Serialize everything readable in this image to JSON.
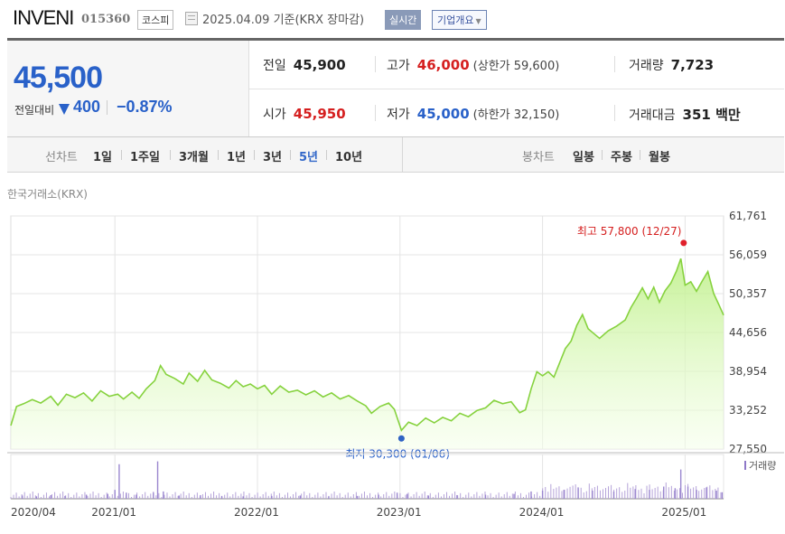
{
  "header": {
    "name": "INVENI",
    "code": "015360",
    "market": "코스피",
    "date_text": "2025.04.09  기준(KRX 장마감)",
    "live": "실시간",
    "company_info": "기업개요"
  },
  "quote": {
    "price": "45,500",
    "change_label": "전일대비",
    "change": "400",
    "change_pct": "−0.87%",
    "prev_label": "전일",
    "prev": "45,900",
    "high_label": "고가",
    "high": "46,000",
    "upper_limit": "(상한가 59,600)",
    "volume_label": "거래량",
    "volume": "7,723",
    "open_label": "시가",
    "open": "45,950",
    "low_label": "저가",
    "low": "45,000",
    "lower_limit": "(하한가 32,150)",
    "amount_label": "거래대금",
    "amount": "351 백만",
    "down_color": "#2961c9",
    "up_color": "#d51f1f"
  },
  "toolbar": {
    "line_label": "선차트",
    "periods": [
      "1일",
      "1주일",
      "3개월",
      "1년",
      "3년",
      "5년",
      "10년"
    ],
    "active_period": "5년",
    "candle_label": "봉차트",
    "candles": [
      "일봉",
      "주봉",
      "월봉"
    ]
  },
  "chart_data": {
    "type": "area",
    "source_label": "한국거래소(KRX)",
    "y_ticks": [
      "61,761",
      "56,059",
      "50,357",
      "44,656",
      "38,954",
      "33,252",
      "27,550"
    ],
    "y_range": [
      27550,
      61761
    ],
    "x_labels": [
      "2020/04",
      "2021/01",
      "2022/01",
      "2023/01",
      "2024/01",
      "2025/01"
    ],
    "max_label": "최고 57,800 (12/27)",
    "min_label": "최저 30,300 (01/06)",
    "volume_label": "거래량",
    "price_series": [
      [
        2020.27,
        31000
      ],
      [
        2020.31,
        33800
      ],
      [
        2020.36,
        34200
      ],
      [
        2020.42,
        34800
      ],
      [
        2020.48,
        34300
      ],
      [
        2020.55,
        35300
      ],
      [
        2020.6,
        34000
      ],
      [
        2020.66,
        35600
      ],
      [
        2020.72,
        35100
      ],
      [
        2020.78,
        35800
      ],
      [
        2020.84,
        34600
      ],
      [
        2020.9,
        36100
      ],
      [
        2020.96,
        35300
      ],
      [
        2021.02,
        35600
      ],
      [
        2021.06,
        34900
      ],
      [
        2021.12,
        35900
      ],
      [
        2021.17,
        35000
      ],
      [
        2021.22,
        36400
      ],
      [
        2021.28,
        37600
      ],
      [
        2021.32,
        39800
      ],
      [
        2021.36,
        38500
      ],
      [
        2021.42,
        37900
      ],
      [
        2021.48,
        37100
      ],
      [
        2021.52,
        38700
      ],
      [
        2021.58,
        37500
      ],
      [
        2021.63,
        39100
      ],
      [
        2021.68,
        37700
      ],
      [
        2021.74,
        37200
      ],
      [
        2021.8,
        36500
      ],
      [
        2021.85,
        37600
      ],
      [
        2021.9,
        36700
      ],
      [
        2021.95,
        37100
      ],
      [
        2022.0,
        36400
      ],
      [
        2022.05,
        36900
      ],
      [
        2022.1,
        35600
      ],
      [
        2022.16,
        36800
      ],
      [
        2022.22,
        35900
      ],
      [
        2022.28,
        36200
      ],
      [
        2022.34,
        35500
      ],
      [
        2022.4,
        36100
      ],
      [
        2022.46,
        35200
      ],
      [
        2022.52,
        35800
      ],
      [
        2022.58,
        34900
      ],
      [
        2022.64,
        35400
      ],
      [
        2022.7,
        34600
      ],
      [
        2022.76,
        33900
      ],
      [
        2022.8,
        32800
      ],
      [
        2022.86,
        33800
      ],
      [
        2022.92,
        34300
      ],
      [
        2022.96,
        33400
      ],
      [
        2023.01,
        30300
      ],
      [
        2023.06,
        31500
      ],
      [
        2023.12,
        31000
      ],
      [
        2023.18,
        32100
      ],
      [
        2023.24,
        31400
      ],
      [
        2023.3,
        32200
      ],
      [
        2023.36,
        31700
      ],
      [
        2023.42,
        32800
      ],
      [
        2023.48,
        32300
      ],
      [
        2023.54,
        33200
      ],
      [
        2023.6,
        33600
      ],
      [
        2023.66,
        34700
      ],
      [
        2023.72,
        34200
      ],
      [
        2023.78,
        34500
      ],
      [
        2023.84,
        32900
      ],
      [
        2023.88,
        33300
      ],
      [
        2023.92,
        36400
      ],
      [
        2023.96,
        38900
      ],
      [
        2024.0,
        38300
      ],
      [
        2024.04,
        38900
      ],
      [
        2024.08,
        38100
      ],
      [
        2024.12,
        40200
      ],
      [
        2024.16,
        42300
      ],
      [
        2024.2,
        43400
      ],
      [
        2024.24,
        45700
      ],
      [
        2024.28,
        47300
      ],
      [
        2024.32,
        45200
      ],
      [
        2024.36,
        44500
      ],
      [
        2024.4,
        43800
      ],
      [
        2024.46,
        44900
      ],
      [
        2024.52,
        45600
      ],
      [
        2024.58,
        46500
      ],
      [
        2024.62,
        48300
      ],
      [
        2024.66,
        49700
      ],
      [
        2024.7,
        51200
      ],
      [
        2024.74,
        49600
      ],
      [
        2024.78,
        51300
      ],
      [
        2024.82,
        49100
      ],
      [
        2024.86,
        50800
      ],
      [
        2024.9,
        51900
      ],
      [
        2024.94,
        53700
      ],
      [
        2024.97,
        55500
      ],
      [
        2025.0,
        51600
      ],
      [
        2025.04,
        52100
      ],
      [
        2025.08,
        50700
      ],
      [
        2025.12,
        52200
      ],
      [
        2025.16,
        53600
      ],
      [
        2025.2,
        50400
      ],
      [
        2025.24,
        48600
      ],
      [
        2025.27,
        47200
      ]
    ],
    "volume_series": [
      [
        2020.35,
        0.08
      ],
      [
        2020.45,
        0.06
      ],
      [
        2020.55,
        0.09
      ],
      [
        2020.65,
        0.07
      ],
      [
        2020.8,
        0.1
      ],
      [
        2020.95,
        0.12
      ],
      [
        2021.0,
        0.22
      ],
      [
        2021.03,
        0.85
      ],
      [
        2021.08,
        0.15
      ],
      [
        2021.15,
        0.1
      ],
      [
        2021.27,
        0.15
      ],
      [
        2021.3,
        0.92
      ],
      [
        2021.34,
        0.18
      ],
      [
        2021.45,
        0.08
      ],
      [
        2021.6,
        0.09
      ],
      [
        2021.75,
        0.07
      ],
      [
        2021.9,
        0.06
      ],
      [
        2022.1,
        0.07
      ],
      [
        2022.3,
        0.08
      ],
      [
        2022.5,
        0.06
      ],
      [
        2022.7,
        0.07
      ],
      [
        2022.85,
        0.1
      ],
      [
        2022.98,
        0.15
      ],
      [
        2023.05,
        0.12
      ],
      [
        2023.2,
        0.08
      ],
      [
        2023.4,
        0.09
      ],
      [
        2023.6,
        0.1
      ],
      [
        2023.8,
        0.12
      ],
      [
        2023.92,
        0.18
      ],
      [
        2024.0,
        0.2
      ],
      [
        2024.15,
        0.22
      ],
      [
        2024.25,
        0.28
      ],
      [
        2024.35,
        0.2
      ],
      [
        2024.5,
        0.18
      ],
      [
        2024.65,
        0.24
      ],
      [
        2024.75,
        0.22
      ],
      [
        2024.85,
        0.3
      ],
      [
        2024.93,
        0.26
      ],
      [
        2024.97,
        0.72
      ],
      [
        2025.02,
        0.3
      ],
      [
        2025.08,
        0.22
      ],
      [
        2025.15,
        0.28
      ],
      [
        2025.22,
        0.2
      ],
      [
        2025.26,
        0.16
      ]
    ]
  }
}
